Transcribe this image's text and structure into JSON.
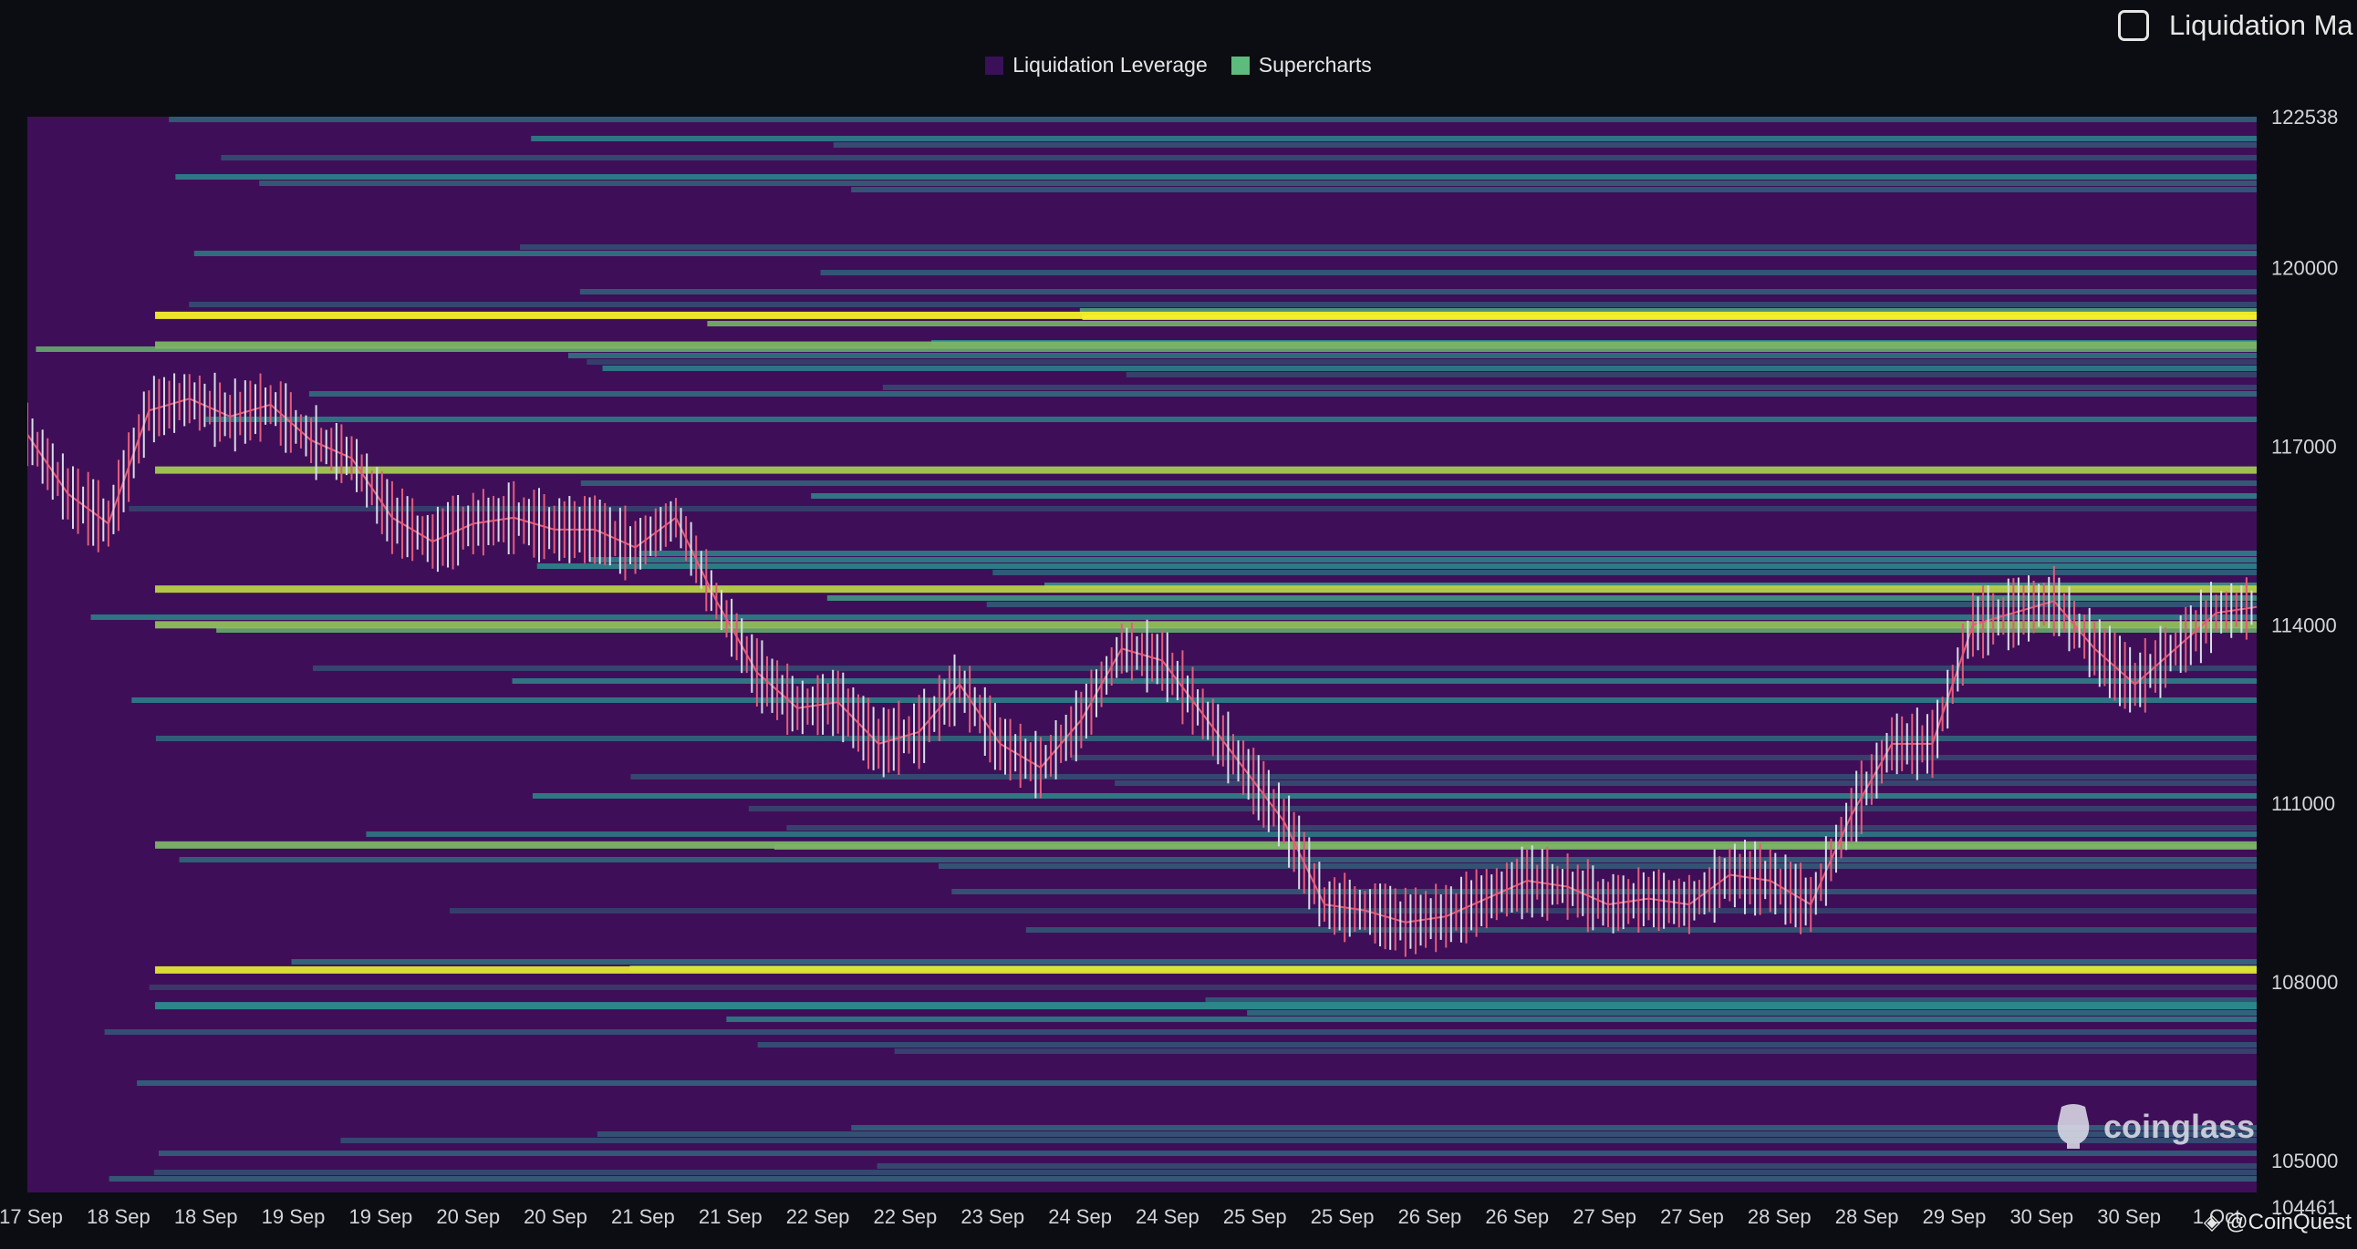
{
  "header": {
    "checkbox_label": "Liquidation Ma"
  },
  "legend": [
    {
      "label": "Liquidation Leverage",
      "color": "#3a1158"
    },
    {
      "label": "Supercharts",
      "color": "#5dbb7e"
    }
  ],
  "watermark": "coinglass",
  "footer": {
    "credit": "@CoinQuest"
  },
  "colors": {
    "background": "#0b0d12",
    "heatmap_low": "#3e0f58",
    "heatmap_mid": "#2b8d8d",
    "heatmap_high": "#f5f02a",
    "candle_up": "#d8dde6",
    "candle_down": "#e55c7a"
  },
  "chart_data": {
    "type": "heatmap",
    "title": "",
    "xlabel": "",
    "ylabel": "",
    "x_tick_labels": [
      "17 Sep",
      "18 Sep",
      "18 Sep",
      "19 Sep",
      "19 Sep",
      "20 Sep",
      "20 Sep",
      "21 Sep",
      "21 Sep",
      "22 Sep",
      "22 Sep",
      "23 Sep",
      "24 Sep",
      "24 Sep",
      "25 Sep",
      "25 Sep",
      "26 Sep",
      "26 Sep",
      "27 Sep",
      "27 Sep",
      "28 Sep",
      "28 Sep",
      "29 Sep",
      "30 Sep",
      "30 Sep",
      "1 Oct"
    ],
    "y_tick_labels": [
      "122538",
      "120000",
      "117000",
      "114000",
      "111000",
      "108000",
      "105000",
      "104461"
    ],
    "ylim": [
      104461,
      122538
    ],
    "price_path": [
      [
        0,
        117200
      ],
      [
        1,
        116200
      ],
      [
        2,
        115700
      ],
      [
        3,
        117600
      ],
      [
        4,
        117800
      ],
      [
        5,
        117500
      ],
      [
        6,
        117700
      ],
      [
        7,
        117100
      ],
      [
        8,
        116800
      ],
      [
        9,
        115800
      ],
      [
        10,
        115400
      ],
      [
        11,
        115700
      ],
      [
        12,
        115800
      ],
      [
        13,
        115600
      ],
      [
        14,
        115600
      ],
      [
        15,
        115300
      ],
      [
        16,
        115800
      ],
      [
        17,
        114400
      ],
      [
        18,
        113200
      ],
      [
        19,
        112600
      ],
      [
        20,
        112700
      ],
      [
        21,
        112000
      ],
      [
        22,
        112200
      ],
      [
        23,
        113000
      ],
      [
        24,
        112000
      ],
      [
        25,
        111600
      ],
      [
        26,
        112400
      ],
      [
        27,
        113600
      ],
      [
        28,
        113400
      ],
      [
        29,
        112500
      ],
      [
        30,
        111600
      ],
      [
        31,
        110700
      ],
      [
        32,
        109300
      ],
      [
        33,
        109200
      ],
      [
        34,
        109000
      ],
      [
        35,
        109100
      ],
      [
        36,
        109400
      ],
      [
        37,
        109700
      ],
      [
        38,
        109600
      ],
      [
        39,
        109300
      ],
      [
        40,
        109400
      ],
      [
        41,
        109300
      ],
      [
        42,
        109800
      ],
      [
        43,
        109700
      ],
      [
        44,
        109300
      ],
      [
        45,
        110800
      ],
      [
        46,
        112000
      ],
      [
        47,
        112000
      ],
      [
        48,
        114000
      ],
      [
        49,
        114200
      ],
      [
        50,
        114400
      ],
      [
        51,
        113600
      ],
      [
        52,
        113000
      ],
      [
        53,
        113600
      ],
      [
        54,
        114200
      ],
      [
        55,
        114300
      ]
    ],
    "heat_bands": [
      {
        "price": 119200,
        "intensity": 1.0
      },
      {
        "price": 118700,
        "intensity": 0.7
      },
      {
        "price": 116600,
        "intensity": 0.8
      },
      {
        "price": 114600,
        "intensity": 0.85
      },
      {
        "price": 114000,
        "intensity": 0.75
      },
      {
        "price": 110300,
        "intensity": 0.7
      },
      {
        "price": 108200,
        "intensity": 0.95
      },
      {
        "price": 107600,
        "intensity": 0.5
      }
    ]
  }
}
